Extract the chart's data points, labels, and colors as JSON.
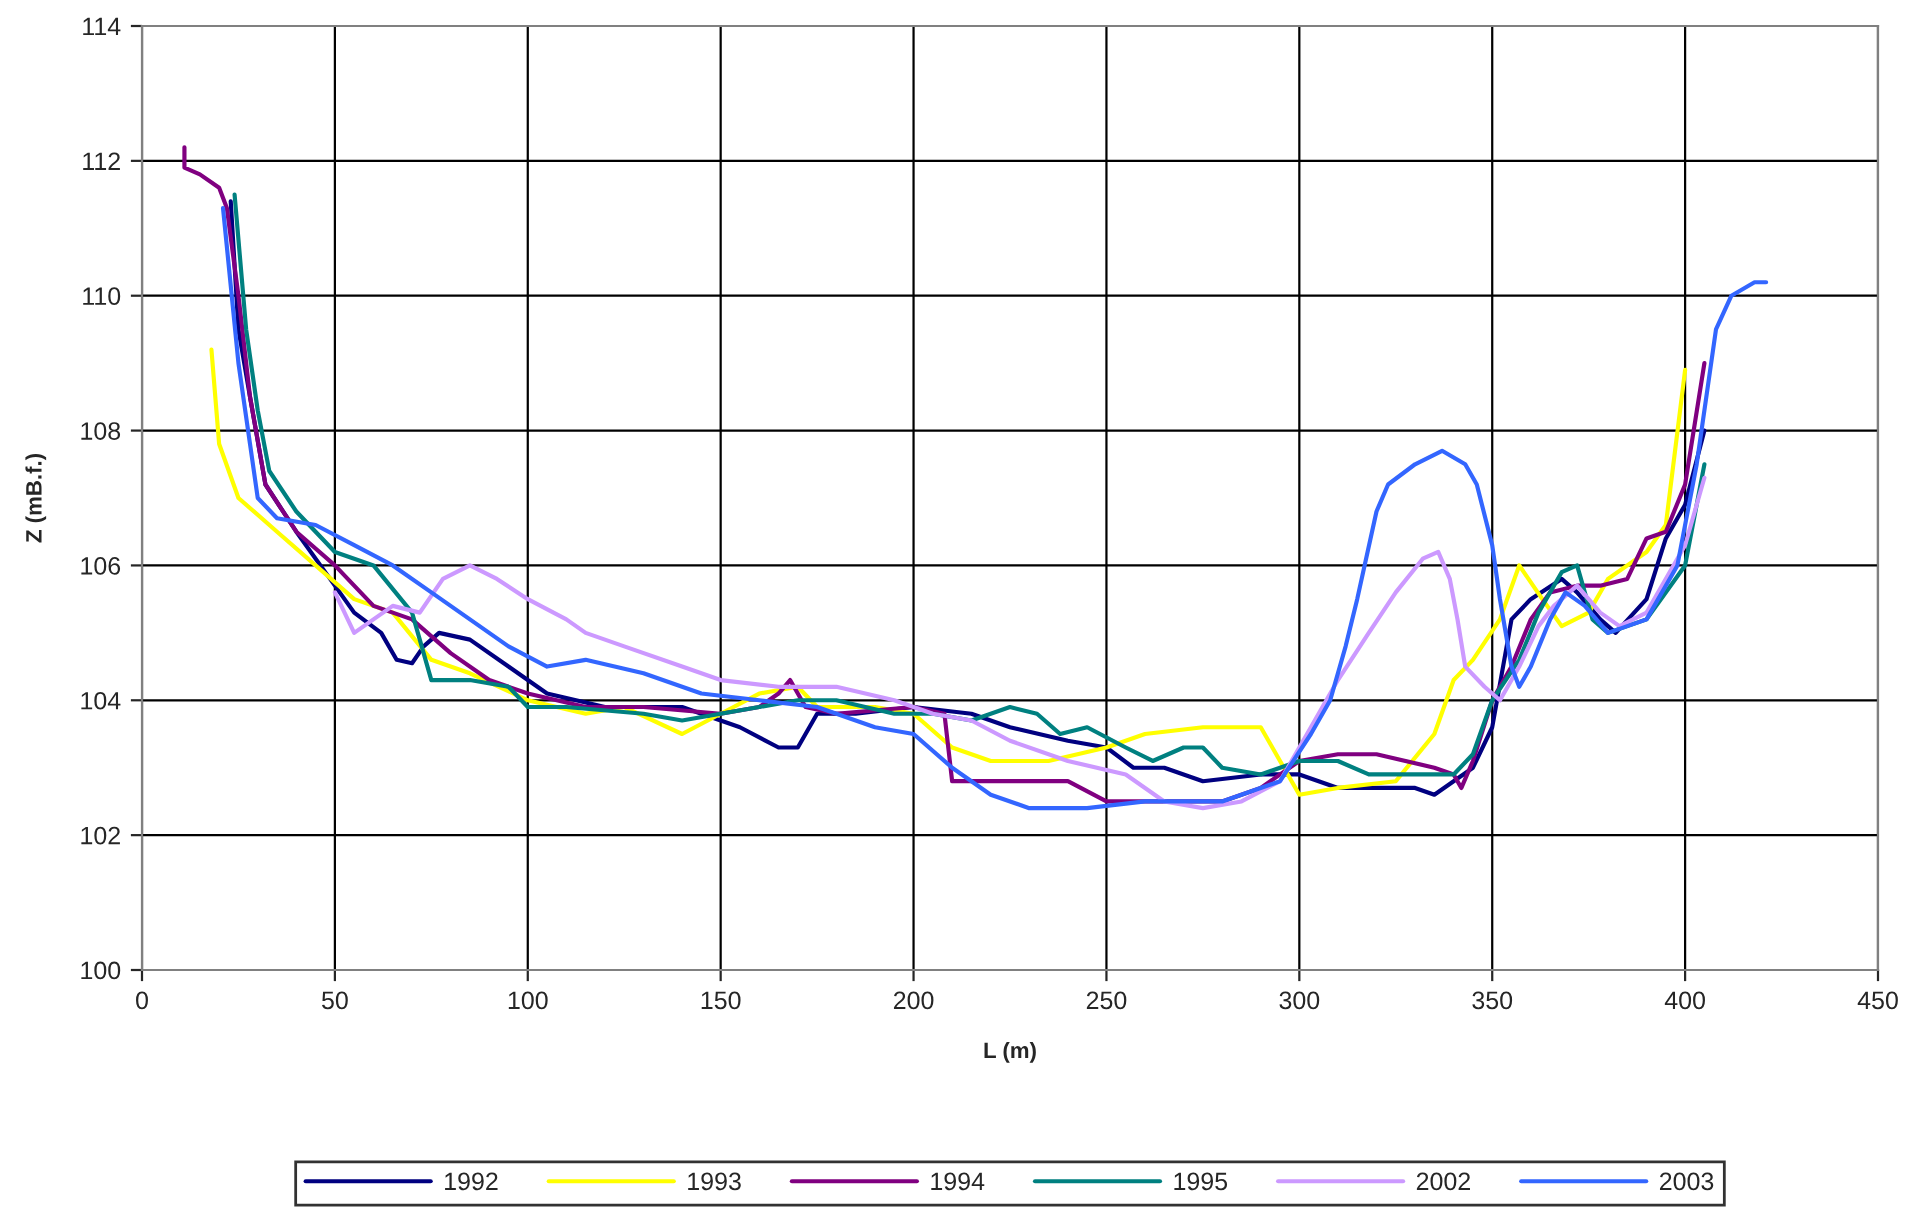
{
  "chart_data": {
    "type": "line",
    "xlabel": "L (m)",
    "ylabel": "Z (mB.f.)",
    "xlim": [
      0,
      450
    ],
    "ylim": [
      100,
      114
    ],
    "xticks": [
      0,
      50,
      100,
      150,
      200,
      250,
      300,
      350,
      400,
      450
    ],
    "yticks": [
      100,
      102,
      104,
      106,
      108,
      110,
      112,
      114
    ],
    "grid": true,
    "legend": "bottom",
    "marker": "none",
    "line_style": "solid",
    "series": [
      {
        "name": "1992",
        "color": "#000080",
        "x": [
          23,
          25,
          28,
          32,
          40,
          50,
          55,
          62,
          66,
          70,
          73,
          77,
          85,
          95,
          105,
          120,
          140,
          155,
          165,
          170,
          175,
          185,
          200,
          215,
          225,
          240,
          250,
          257,
          265,
          275,
          290,
          300,
          310,
          330,
          335,
          340,
          345,
          350,
          355,
          360,
          368,
          372,
          378,
          382,
          390,
          395,
          400,
          405
        ],
        "values": [
          111.4,
          109.5,
          108.5,
          107.2,
          106.5,
          105.7,
          105.3,
          105,
          104.6,
          104.55,
          104.8,
          105.0,
          104.9,
          104.5,
          104.1,
          103.9,
          103.9,
          103.6,
          103.3,
          103.3,
          103.8,
          103.8,
          103.9,
          103.8,
          103.6,
          103.4,
          103.3,
          103.0,
          103.0,
          102.8,
          102.9,
          102.9,
          102.7,
          102.7,
          102.6,
          102.8,
          103.0,
          103.6,
          105.2,
          105.5,
          105.8,
          105.6,
          105.2,
          105.0,
          105.5,
          106.4,
          106.9,
          108
        ]
      },
      {
        "name": "1993",
        "color": "#ffff00",
        "x": [
          18,
          20,
          25,
          35,
          45,
          55,
          65,
          75,
          85,
          100,
          115,
          125,
          140,
          150,
          160,
          170,
          175,
          190,
          200,
          210,
          220,
          235,
          250,
          260,
          275,
          290,
          295,
          300,
          310,
          325,
          335,
          340,
          345,
          352,
          357,
          363,
          368,
          375,
          380,
          390,
          395,
          400
        ],
        "values": [
          109.2,
          107.8,
          107,
          106.5,
          106,
          105.5,
          105.3,
          104.6,
          104.4,
          104,
          103.8,
          103.9,
          103.5,
          103.8,
          104.1,
          104.2,
          103.9,
          103.9,
          103.8,
          103.3,
          103.1,
          103.1,
          103.3,
          103.5,
          103.6,
          103.6,
          103.1,
          102.6,
          102.7,
          102.8,
          103.5,
          104.3,
          104.6,
          105.2,
          106.0,
          105.5,
          105.1,
          105.3,
          105.8,
          106.2,
          106.6,
          108.9
        ]
      },
      {
        "name": "1994",
        "color": "#800080",
        "x": [
          11,
          11,
          15,
          20,
          22,
          25,
          28,
          32,
          40,
          50,
          60,
          70,
          80,
          90,
          100,
          115,
          130,
          150,
          160,
          165,
          168,
          172,
          180,
          200,
          208,
          210,
          215,
          240,
          250,
          260,
          280,
          290,
          300,
          310,
          320,
          335,
          340,
          342,
          345,
          350,
          355,
          360,
          365,
          372,
          378,
          385,
          390,
          395,
          400,
          405
        ],
        "values": [
          112.2,
          111.9,
          111.8,
          111.6,
          111.3,
          110,
          108.5,
          107.2,
          106.5,
          106.0,
          105.4,
          105.2,
          104.7,
          104.3,
          104.1,
          103.9,
          103.9,
          103.8,
          103.9,
          104.1,
          104.3,
          103.9,
          103.8,
          103.9,
          103.8,
          102.8,
          102.8,
          102.8,
          102.5,
          102.5,
          102.5,
          102.7,
          103.1,
          103.2,
          103.2,
          103.0,
          102.9,
          102.7,
          103.1,
          104.0,
          104.5,
          105.2,
          105.6,
          105.7,
          105.7,
          105.8,
          106.4,
          106.5,
          107.2,
          109
        ]
      },
      {
        "name": "1995",
        "color": "#008080",
        "x": [
          24,
          27,
          30,
          33,
          40,
          50,
          60,
          70,
          75,
          85,
          95,
          100,
          110,
          130,
          140,
          150,
          160,
          170,
          180,
          195,
          205,
          215,
          225,
          232,
          238,
          245,
          255,
          262,
          270,
          275,
          280,
          290,
          300,
          310,
          318,
          330,
          340,
          345,
          350,
          357,
          362,
          368,
          372,
          376,
          380,
          390,
          400,
          405
        ],
        "values": [
          111.5,
          109.5,
          108.3,
          107.4,
          106.8,
          106.2,
          106.0,
          105.3,
          104.3,
          104.3,
          104.2,
          103.9,
          103.9,
          103.8,
          103.7,
          103.8,
          103.9,
          104.0,
          104.0,
          103.8,
          103.8,
          103.7,
          103.9,
          103.8,
          103.5,
          103.6,
          103.3,
          103.1,
          103.3,
          103.3,
          103.0,
          102.9,
          103.1,
          103.1,
          102.9,
          102.9,
          102.9,
          103.2,
          104.0,
          104.6,
          105.3,
          105.9,
          106.0,
          105.2,
          105.0,
          105.2,
          106.0,
          107.5
        ]
      },
      {
        "name": "2002",
        "color": "#cc99ff",
        "x": [
          50,
          55,
          60,
          65,
          72,
          78,
          85,
          92,
          100,
          110,
          115,
          125,
          140,
          150,
          165,
          180,
          195,
          205,
          215,
          225,
          240,
          255,
          265,
          275,
          285,
          295,
          302,
          310,
          318,
          325,
          332,
          336,
          339,
          341,
          343,
          348,
          352,
          357,
          362,
          366,
          372,
          378,
          383,
          390,
          400,
          405
        ],
        "values": [
          105.6,
          105.0,
          105.2,
          105.4,
          105.3,
          105.8,
          106.0,
          105.8,
          105.5,
          105.2,
          105.0,
          104.8,
          104.5,
          104.3,
          104.2,
          104.2,
          104.0,
          103.8,
          103.7,
          103.4,
          103.1,
          102.9,
          102.5,
          102.4,
          102.5,
          102.8,
          103.5,
          104.3,
          105.0,
          105.6,
          106.1,
          106.2,
          105.8,
          105.2,
          104.5,
          104.2,
          104.0,
          104.5,
          105.1,
          105.4,
          105.7,
          105.3,
          105.1,
          105.3,
          106.3,
          107.3
        ]
      },
      {
        "name": "2003",
        "color": "#3366ff",
        "x": [
          21,
          25,
          28,
          30,
          35,
          45,
          55,
          65,
          75,
          85,
          95,
          105,
          115,
          130,
          145,
          160,
          175,
          190,
          200,
          210,
          220,
          230,
          245,
          260,
          280,
          295,
          303,
          308,
          312,
          315,
          320,
          323,
          330,
          337,
          343,
          346,
          350,
          352,
          355,
          357,
          360,
          365,
          369,
          374,
          380,
          390,
          398,
          403,
          408,
          412,
          418,
          421
        ],
        "values": [
          111.3,
          109,
          107.8,
          107,
          106.7,
          106.6,
          106.3,
          106.0,
          105.6,
          105.2,
          104.8,
          104.5,
          104.6,
          104.4,
          104.1,
          104.0,
          103.9,
          103.6,
          103.5,
          103.0,
          102.6,
          102.4,
          102.4,
          102.5,
          102.5,
          102.8,
          103.5,
          104.0,
          104.8,
          105.5,
          106.8,
          107.2,
          107.5,
          107.7,
          107.5,
          107.2,
          106.3,
          105.5,
          104.5,
          104.2,
          104.5,
          105.2,
          105.6,
          105.4,
          105.0,
          105.2,
          106.0,
          107.5,
          109.5,
          110,
          110.2,
          110.2
        ]
      }
    ]
  }
}
